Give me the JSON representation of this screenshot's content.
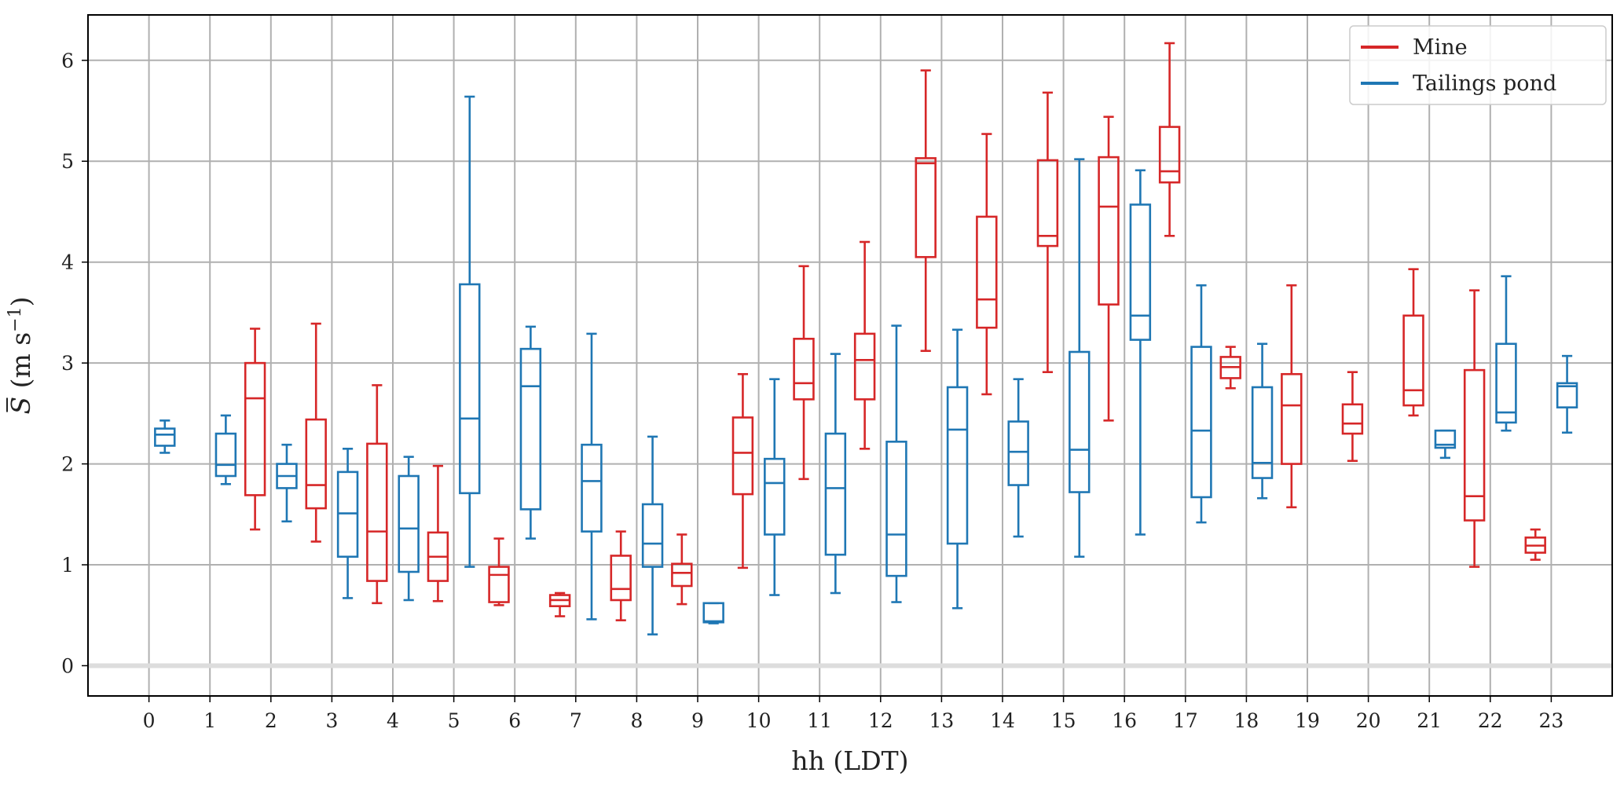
{
  "chart_data": {
    "type": "box",
    "title": "",
    "xlabel": "hh (LDT)",
    "ylabel_main": "S",
    "ylabel_unit_open": " (m s",
    "ylabel_unit_exp": "−1",
    "ylabel_unit_close": ")",
    "xlim": [
      -1,
      24
    ],
    "ylim": [
      -0.3,
      6.45
    ],
    "xticks": [
      0,
      1,
      2,
      3,
      4,
      5,
      6,
      7,
      8,
      9,
      10,
      11,
      12,
      13,
      14,
      15,
      16,
      17,
      18,
      19,
      20,
      21,
      22,
      23
    ],
    "yticks": [
      0,
      1,
      2,
      3,
      4,
      5,
      6
    ],
    "grid": true,
    "legend": {
      "location": "top-right",
      "entries": [
        "Mine",
        "Tailings pond"
      ]
    },
    "colors": {
      "Mine": "#d62728",
      "Tailings pond": "#1f77b4"
    },
    "series": [
      {
        "name": "Mine",
        "boxes": [
          {
            "hour": 2,
            "whislo": 1.35,
            "q1": 1.69,
            "med": 2.65,
            "q3": 3.0,
            "whishi": 3.34
          },
          {
            "hour": 3,
            "whislo": 1.23,
            "q1": 1.56,
            "med": 1.79,
            "q3": 2.44,
            "whishi": 3.39
          },
          {
            "hour": 4,
            "whislo": 0.62,
            "q1": 0.84,
            "med": 1.33,
            "q3": 2.2,
            "whishi": 2.78
          },
          {
            "hour": 5,
            "whislo": 0.64,
            "q1": 0.84,
            "med": 1.08,
            "q3": 1.32,
            "whishi": 1.98
          },
          {
            "hour": 6,
            "whislo": 0.6,
            "q1": 0.63,
            "med": 0.9,
            "q3": 0.98,
            "whishi": 1.26
          },
          {
            "hour": 7,
            "whislo": 0.49,
            "q1": 0.59,
            "med": 0.65,
            "q3": 0.7,
            "whishi": 0.72
          },
          {
            "hour": 8,
            "whislo": 0.45,
            "q1": 0.65,
            "med": 0.76,
            "q3": 1.09,
            "whishi": 1.33
          },
          {
            "hour": 9,
            "whislo": 0.61,
            "q1": 0.79,
            "med": 0.92,
            "q3": 1.01,
            "whishi": 1.3
          },
          {
            "hour": 10,
            "whislo": 0.97,
            "q1": 1.7,
            "med": 2.11,
            "q3": 2.46,
            "whishi": 2.89
          },
          {
            "hour": 11,
            "whislo": 1.85,
            "q1": 2.64,
            "med": 2.8,
            "q3": 3.24,
            "whishi": 3.96
          },
          {
            "hour": 12,
            "whislo": 2.15,
            "q1": 2.64,
            "med": 3.03,
            "q3": 3.29,
            "whishi": 4.2
          },
          {
            "hour": 13,
            "whislo": 3.12,
            "q1": 4.05,
            "med": 4.98,
            "q3": 5.03,
            "whishi": 5.9
          },
          {
            "hour": 14,
            "whislo": 2.69,
            "q1": 3.35,
            "med": 3.63,
            "q3": 4.45,
            "whishi": 5.27
          },
          {
            "hour": 15,
            "whislo": 2.91,
            "q1": 4.16,
            "med": 4.26,
            "q3": 5.01,
            "whishi": 5.68
          },
          {
            "hour": 16,
            "whislo": 2.43,
            "q1": 3.58,
            "med": 4.55,
            "q3": 5.04,
            "whishi": 5.44
          },
          {
            "hour": 17,
            "whislo": 4.26,
            "q1": 4.79,
            "med": 4.9,
            "q3": 5.34,
            "whishi": 6.17
          },
          {
            "hour": 18,
            "whislo": 2.75,
            "q1": 2.85,
            "med": 2.96,
            "q3": 3.06,
            "whishi": 3.16
          },
          {
            "hour": 19,
            "whislo": 1.57,
            "q1": 2.0,
            "med": 2.58,
            "q3": 2.89,
            "whishi": 3.77
          },
          {
            "hour": 20,
            "whislo": 2.03,
            "q1": 2.3,
            "med": 2.4,
            "q3": 2.59,
            "whishi": 2.91
          },
          {
            "hour": 21,
            "whislo": 2.48,
            "q1": 2.58,
            "med": 2.73,
            "q3": 3.47,
            "whishi": 3.93
          },
          {
            "hour": 22,
            "whislo": 0.98,
            "q1": 1.44,
            "med": 1.68,
            "q3": 2.93,
            "whishi": 3.72
          },
          {
            "hour": 23,
            "whislo": 1.05,
            "q1": 1.12,
            "med": 1.19,
            "q3": 1.27,
            "whishi": 1.35
          }
        ]
      },
      {
        "name": "Tailings pond",
        "boxes": [
          {
            "hour": 0,
            "whislo": 2.11,
            "q1": 2.18,
            "med": 2.29,
            "q3": 2.35,
            "whishi": 2.43
          },
          {
            "hour": 1,
            "whislo": 1.8,
            "q1": 1.88,
            "med": 1.99,
            "q3": 2.3,
            "whishi": 2.48
          },
          {
            "hour": 2,
            "whislo": 1.43,
            "q1": 1.76,
            "med": 1.88,
            "q3": 2.0,
            "whishi": 2.19
          },
          {
            "hour": 3,
            "whislo": 0.67,
            "q1": 1.08,
            "med": 1.51,
            "q3": 1.92,
            "whishi": 2.15
          },
          {
            "hour": 4,
            "whislo": 0.65,
            "q1": 0.93,
            "med": 1.36,
            "q3": 1.88,
            "whishi": 2.07
          },
          {
            "hour": 5,
            "whislo": 0.98,
            "q1": 1.71,
            "med": 2.45,
            "q3": 3.78,
            "whishi": 5.64
          },
          {
            "hour": 6,
            "whislo": 1.26,
            "q1": 1.55,
            "med": 2.77,
            "q3": 3.14,
            "whishi": 3.36
          },
          {
            "hour": 7,
            "whislo": 0.46,
            "q1": 1.33,
            "med": 1.83,
            "q3": 2.19,
            "whishi": 3.29
          },
          {
            "hour": 8,
            "whislo": 0.31,
            "q1": 0.98,
            "med": 1.21,
            "q3": 1.6,
            "whishi": 2.27
          },
          {
            "hour": 9,
            "whislo": 0.42,
            "q1": 0.43,
            "med": 0.44,
            "q3": 0.62,
            "whishi": 0.62
          },
          {
            "hour": 10,
            "whislo": 0.7,
            "q1": 1.3,
            "med": 1.81,
            "q3": 2.05,
            "whishi": 2.84
          },
          {
            "hour": 11,
            "whislo": 0.72,
            "q1": 1.1,
            "med": 1.76,
            "q3": 2.3,
            "whishi": 3.09
          },
          {
            "hour": 12,
            "whislo": 0.63,
            "q1": 0.89,
            "med": 1.3,
            "q3": 2.22,
            "whishi": 3.37
          },
          {
            "hour": 13,
            "whislo": 0.57,
            "q1": 1.21,
            "med": 2.34,
            "q3": 2.76,
            "whishi": 3.33
          },
          {
            "hour": 14,
            "whislo": 1.28,
            "q1": 1.79,
            "med": 2.12,
            "q3": 2.42,
            "whishi": 2.84
          },
          {
            "hour": 15,
            "whislo": 1.08,
            "q1": 1.72,
            "med": 2.14,
            "q3": 3.11,
            "whishi": 5.02
          },
          {
            "hour": 16,
            "whislo": 1.3,
            "q1": 3.23,
            "med": 3.47,
            "q3": 4.57,
            "whishi": 4.91
          },
          {
            "hour": 17,
            "whislo": 1.42,
            "q1": 1.67,
            "med": 2.33,
            "q3": 3.16,
            "whishi": 3.77
          },
          {
            "hour": 18,
            "whislo": 1.66,
            "q1": 1.86,
            "med": 2.01,
            "q3": 2.76,
            "whishi": 3.19
          },
          {
            "hour": 21,
            "whislo": 2.06,
            "q1": 2.16,
            "med": 2.19,
            "q3": 2.33,
            "whishi": 2.33
          },
          {
            "hour": 22,
            "whislo": 2.33,
            "q1": 2.41,
            "med": 2.51,
            "q3": 3.19,
            "whishi": 3.86
          },
          {
            "hour": 23,
            "whislo": 2.31,
            "q1": 2.56,
            "med": 2.77,
            "q3": 2.8,
            "whishi": 3.07
          }
        ]
      }
    ]
  }
}
